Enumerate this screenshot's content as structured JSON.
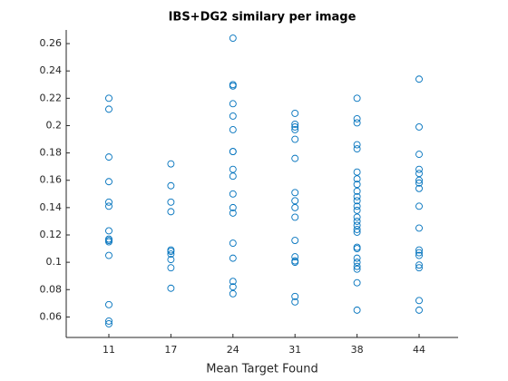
{
  "chart_data": {
    "type": "scatter",
    "title": "IBS+DG2 similary per image",
    "x_label": "Mean Target Found",
    "categories": [
      11,
      17,
      24,
      31,
      38,
      44
    ],
    "values": [
      [
        0.22,
        0.212,
        0.177,
        0.159,
        0.144,
        0.141,
        0.123,
        0.117,
        0.116,
        0.115,
        0.105,
        0.069,
        0.057,
        0.055
      ],
      [
        0.172,
        0.156,
        0.144,
        0.137,
        0.109,
        0.108,
        0.106,
        0.102,
        0.096,
        0.081
      ],
      [
        0.264,
        0.23,
        0.229,
        0.216,
        0.207,
        0.197,
        0.181,
        0.181,
        0.168,
        0.163,
        0.15,
        0.14,
        0.136,
        0.114,
        0.103,
        0.086,
        0.082,
        0.077
      ],
      [
        0.209,
        0.201,
        0.199,
        0.197,
        0.19,
        0.176,
        0.151,
        0.145,
        0.14,
        0.133,
        0.116,
        0.104,
        0.101,
        0.1,
        0.075,
        0.071
      ],
      [
        0.22,
        0.205,
        0.202,
        0.186,
        0.183,
        0.166,
        0.161,
        0.157,
        0.152,
        0.148,
        0.145,
        0.141,
        0.138,
        0.133,
        0.13,
        0.127,
        0.124,
        0.122,
        0.111,
        0.11,
        0.103,
        0.1,
        0.097,
        0.095,
        0.085,
        0.065
      ],
      [
        0.234,
        0.199,
        0.179,
        0.168,
        0.165,
        0.16,
        0.158,
        0.154,
        0.141,
        0.125,
        0.109,
        0.107,
        0.105,
        0.098,
        0.096,
        0.072,
        0.065
      ]
    ],
    "color": "#0072bd",
    "ylim": [
      0.045,
      0.27
    ],
    "yticks": [
      0.06,
      0.08,
      0.1,
      0.12,
      0.14,
      0.16,
      0.18,
      0.2,
      0.22,
      0.24,
      0.26
    ]
  }
}
